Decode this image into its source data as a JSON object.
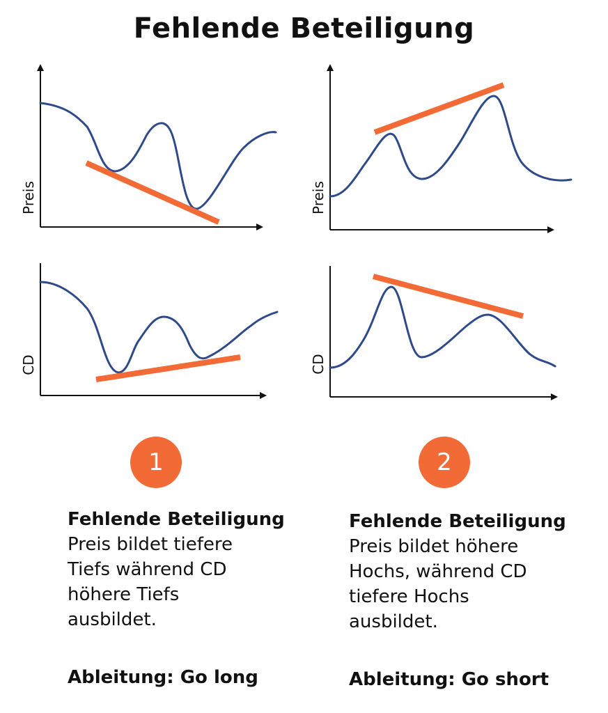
{
  "title": "Fehlende Beteiligung",
  "colors": {
    "price_line": "#2f4a8a",
    "trend_line": "#f26a35",
    "badge": "#f26a35"
  },
  "panels": [
    {
      "badge": "1",
      "price_axis_label": "Preis",
      "indicator_axis_label": "CD",
      "price_trend": "lower lows",
      "indicator_trend": "higher lows",
      "heading": "Fehlende Beteiligung",
      "description": "Preis bildet tiefere Tiefs während CD höhere Tiefs ausbildet.",
      "conclusion": "Ableitung: Go long"
    },
    {
      "badge": "2",
      "price_axis_label": "Preis",
      "indicator_axis_label": "CD",
      "price_trend": "higher highs",
      "indicator_trend": "lower highs",
      "heading": "Fehlende Beteiligung",
      "description": "Preis bildet höhere Hochs, während CD tiefere Hochs ausbildet.",
      "conclusion": "Ableitung: Go short"
    }
  ]
}
